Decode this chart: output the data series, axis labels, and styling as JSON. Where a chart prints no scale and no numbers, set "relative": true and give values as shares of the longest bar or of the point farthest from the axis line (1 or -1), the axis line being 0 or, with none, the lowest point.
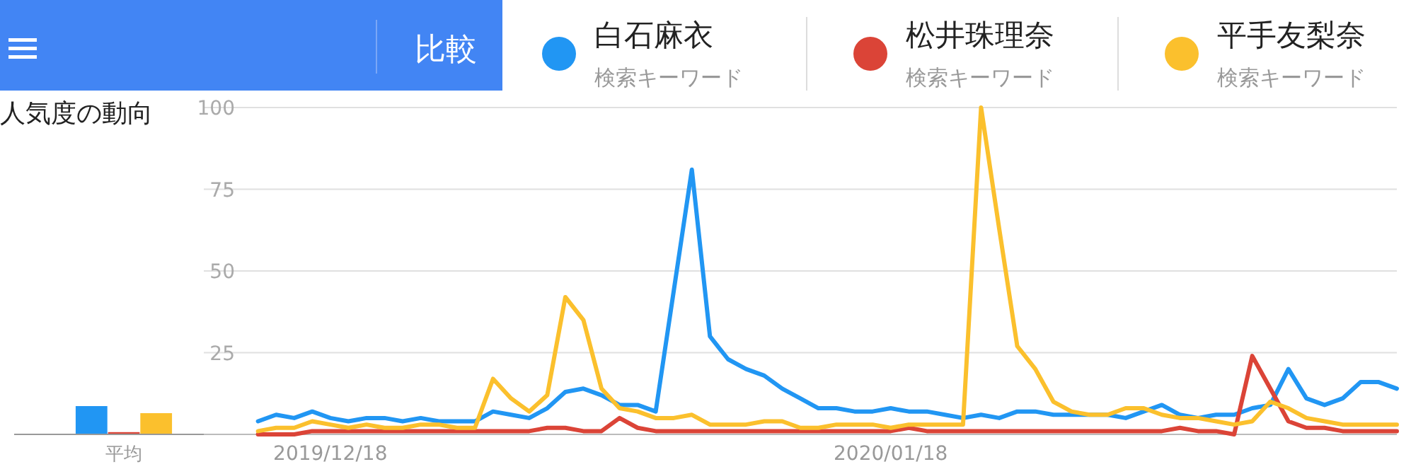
{
  "chart_data": [
    {
      "type": "bar",
      "title": "人気度の動向",
      "categories": [
        "平均"
      ],
      "relative": true,
      "series": [
        {
          "color": "#2196f3",
          "values": [
            1
          ]
        },
        {
          "color": "#db4437",
          "values": [
            0.08
          ]
        },
        {
          "color": "#fbc02d",
          "values": [
            0.75
          ]
        }
      ]
    },
    {
      "type": "line",
      "x": [
        "2019-12-14",
        "2019-12-15",
        "2019-12-16",
        "2019-12-17",
        "2019-12-18",
        "2019-12-19",
        "2019-12-20",
        "2019-12-21",
        "2019-12-22",
        "2019-12-23",
        "2019-12-24",
        "2019-12-25",
        "2019-12-26",
        "2019-12-27",
        "2019-12-28",
        "2019-12-29",
        "2019-12-30",
        "2019-12-31",
        "2020-01-01",
        "2020-01-02",
        "2020-01-03",
        "2020-01-04",
        "2020-01-05",
        "2020-01-06",
        "2020-01-07",
        "2020-01-08",
        "2020-01-09",
        "2020-01-10",
        "2020-01-11",
        "2020-01-12",
        "2020-01-13",
        "2020-01-14",
        "2020-01-15",
        "2020-01-16",
        "2020-01-17",
        "2020-01-18",
        "2020-01-19",
        "2020-01-20",
        "2020-01-21",
        "2020-01-22",
        "2020-01-23",
        "2020-01-24",
        "2020-01-25",
        "2020-01-26",
        "2020-01-27",
        "2020-01-28",
        "2020-01-29",
        "2020-01-30",
        "2020-01-31",
        "2020-02-01",
        "2020-02-02",
        "2020-02-03",
        "2020-02-04",
        "2020-02-05",
        "2020-02-06",
        "2020-02-07",
        "2020-02-08",
        "2020-02-09",
        "2020-02-10",
        "2020-02-11",
        "2020-02-12",
        "2020-02-13",
        "2020-02-14",
        "2020-02-15"
      ],
      "series": [
        {
          "name": "白石麻衣",
          "color": "#2196f3",
          "values": [
            4,
            6,
            5,
            7,
            5,
            4,
            5,
            5,
            4,
            5,
            4,
            4,
            4,
            7,
            6,
            5,
            8,
            13,
            14,
            12,
            9,
            9,
            7,
            44,
            81,
            30,
            23,
            20,
            18,
            14,
            11,
            8,
            8,
            7,
            7,
            8,
            7,
            7,
            6,
            5,
            6,
            5,
            7,
            7,
            6,
            6,
            6,
            6,
            5,
            7,
            9,
            6,
            5,
            6,
            6,
            8,
            9,
            20,
            11,
            9,
            11,
            16,
            16,
            14
          ]
        },
        {
          "name": "松井珠理奈",
          "color": "#db4437",
          "values": [
            0,
            0,
            0,
            1,
            1,
            1,
            1,
            1,
            1,
            1,
            1,
            1,
            1,
            1,
            1,
            1,
            2,
            2,
            1,
            1,
            5,
            2,
            1,
            1,
            1,
            1,
            1,
            1,
            1,
            1,
            1,
            1,
            1,
            1,
            1,
            1,
            2,
            1,
            1,
            1,
            1,
            1,
            1,
            1,
            1,
            1,
            1,
            1,
            1,
            1,
            1,
            2,
            1,
            1,
            0,
            24,
            14,
            4,
            2,
            2,
            1,
            1,
            1,
            1
          ]
        },
        {
          "name": "平手友梨奈",
          "color": "#fbc02d",
          "values": [
            1,
            2,
            2,
            4,
            3,
            2,
            3,
            2,
            2,
            3,
            3,
            2,
            2,
            17,
            11,
            7,
            12,
            42,
            35,
            14,
            8,
            7,
            5,
            5,
            6,
            3,
            3,
            3,
            4,
            4,
            2,
            2,
            3,
            3,
            3,
            2,
            3,
            3,
            3,
            3,
            100,
            63,
            27,
            20,
            10,
            7,
            6,
            6,
            8,
            8,
            6,
            5,
            5,
            4,
            3,
            4,
            10,
            8,
            5,
            4,
            3,
            3,
            3,
            3
          ]
        }
      ],
      "xlim": [
        "2019-12-11",
        "2020-02-15"
      ],
      "xticks": [
        {
          "value": "2019-12-18",
          "label": "2019/12/18"
        },
        {
          "value": "2020-01-18",
          "label": "2020/01/18"
        }
      ],
      "ylim": [
        0,
        100
      ],
      "yticks": [
        {
          "value": 0,
          "label": null
        },
        25,
        50,
        75,
        100
      ],
      "grid": "y",
      "legend": "top",
      "annotations": [
        "比較",
        "検索キーワード",
        "検索キーワード",
        "検索キーワード"
      ]
    }
  ]
}
